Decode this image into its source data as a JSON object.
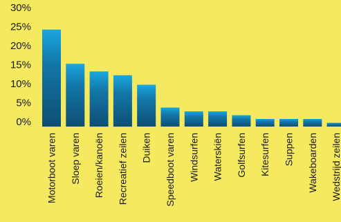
{
  "chart_data": {
    "type": "bar",
    "title": "",
    "xlabel": "",
    "ylabel": "",
    "ylim": [
      0,
      30
    ],
    "yticks": [
      0,
      5,
      10,
      15,
      20,
      25,
      30
    ],
    "ytick_labels": [
      "0%",
      "5%",
      "10%",
      "15%",
      "20%",
      "25%",
      "30%"
    ],
    "grid": false,
    "legend": "none",
    "categories": [
      "Motorboot varen",
      "Sloep varen",
      "Roeien/kanoën",
      "Recreatief zeilen",
      "Duiken",
      "Speedboot varen",
      "Windsurfen",
      "Waterskiën",
      "Golfsurfen",
      "Kitesurfen",
      "Suppen",
      "Wakeboarden",
      "Wedstrijd zeilen"
    ],
    "values": [
      25.5,
      16.5,
      14.5,
      13.5,
      11,
      5,
      4,
      4,
      3,
      2,
      2,
      2,
      1
    ],
    "colors": {
      "background": "#f5e960",
      "bar_top": "#1aa7e0",
      "bar_bottom": "#0d4e73",
      "text": "#1a1a1a"
    }
  }
}
